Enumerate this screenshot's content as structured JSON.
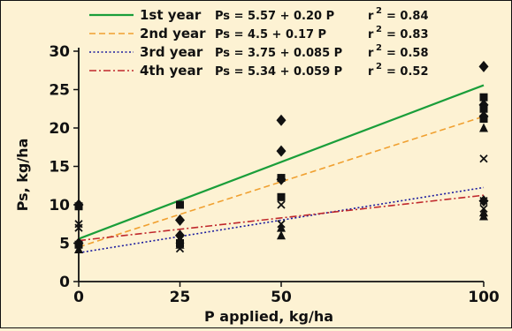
{
  "chart_data": {
    "type": "scatter",
    "xlabel": "P applied, kg/ha",
    "ylabel": "Ps, kg/ha",
    "xlim": [
      0,
      100
    ],
    "ylim": [
      0,
      30
    ],
    "x_ticks": [
      "0",
      "25",
      "50",
      "100"
    ],
    "y_ticks": [
      "0",
      "5",
      "10",
      "15",
      "20",
      "25",
      "30"
    ],
    "grid": false,
    "legend_position": "top",
    "series": [
      {
        "name": "1st year",
        "color": "#1a9e3a",
        "line_style": "solid",
        "equation": "Ps = 5.57 + 0.20 P",
        "r2_label": "r",
        "r2_value": "= 0.84",
        "intercept": 5.57,
        "slope": 0.2,
        "marker": "diamond",
        "points": [
          [
            0,
            10
          ],
          [
            0,
            5
          ],
          [
            25,
            8
          ],
          [
            25,
            6
          ],
          [
            50,
            21
          ],
          [
            50,
            17
          ],
          [
            50,
            13.3
          ],
          [
            100,
            28
          ],
          [
            100,
            23
          ],
          [
            100,
            21.5
          ],
          [
            100,
            10.5
          ]
        ]
      },
      {
        "name": "2nd year",
        "color": "#f0a030",
        "line_style": "dashed",
        "equation": "Ps = 4.5   + 0.17 P",
        "r2_label": "r",
        "r2_value": "= 0.83",
        "intercept": 4.5,
        "slope": 0.17,
        "marker": "square",
        "points": [
          [
            0,
            9.8
          ],
          [
            0,
            4.8
          ],
          [
            25,
            10
          ],
          [
            25,
            5
          ],
          [
            50,
            13.5
          ],
          [
            50,
            11
          ],
          [
            100,
            24
          ],
          [
            100,
            22.5
          ],
          [
            100,
            21.2
          ]
        ]
      },
      {
        "name": "3rd year",
        "color": "#1a1a9e",
        "line_style": "dotted",
        "equation": "Ps = 3.75 + 0.085 P",
        "r2_label": "r",
        "r2_value": "= 0.58",
        "intercept": 3.75,
        "slope": 0.085,
        "marker": "triangle",
        "points": [
          [
            0,
            4.2
          ],
          [
            25,
            5.5
          ],
          [
            25,
            4.8
          ],
          [
            50,
            7
          ],
          [
            50,
            6
          ],
          [
            100,
            20
          ],
          [
            100,
            9
          ],
          [
            100,
            8.5
          ]
        ]
      },
      {
        "name": "4th year",
        "color": "#c0282c",
        "line_style": "dashdot",
        "equation": "Ps = 5.34 + 0.059 P",
        "r2_label": "r",
        "r2_value": "= 0.52",
        "intercept": 5.34,
        "slope": 0.059,
        "marker": "x",
        "points": [
          [
            0,
            7.5
          ],
          [
            0,
            7
          ],
          [
            25,
            5
          ],
          [
            25,
            4.3
          ],
          [
            50,
            10
          ],
          [
            50,
            7.5
          ],
          [
            100,
            16
          ],
          [
            100,
            10.5
          ],
          [
            100,
            9.5
          ]
        ]
      }
    ]
  }
}
